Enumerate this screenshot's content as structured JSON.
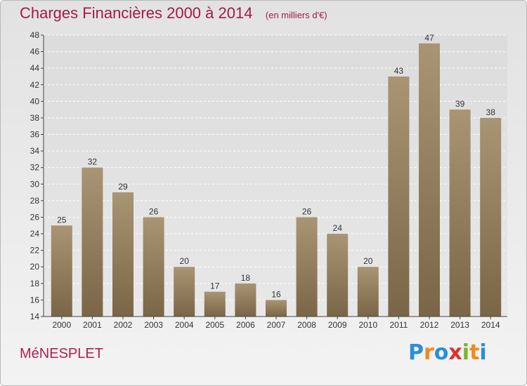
{
  "header": {
    "title": "Charges Financières 2000 à 2014",
    "unit": "(en milliers d'€)"
  },
  "footer": {
    "commune": "MéNESPLET",
    "brand": "Proxiti",
    "brand_letters": [
      {
        "ch": "P",
        "color": "#2a8fd6"
      },
      {
        "ch": "r",
        "color": "#f08a1c"
      },
      {
        "ch": "o",
        "color": "#2a8fd6"
      },
      {
        "ch": "x",
        "color": "#e0302a"
      },
      {
        "ch": "i",
        "color": "#7bb52a"
      },
      {
        "ch": "t",
        "color": "#f08a1c"
      },
      {
        "ch": "i",
        "color": "#2a8fd6"
      }
    ]
  },
  "chart_data": {
    "type": "bar",
    "title": "Charges Financières 2000 à 2014",
    "subtitle": "(en milliers d'€)",
    "categories": [
      "2000",
      "2001",
      "2002",
      "2003",
      "2004",
      "2005",
      "2006",
      "2007",
      "2008",
      "2009",
      "2010",
      "2011",
      "2012",
      "2013",
      "2014"
    ],
    "values": [
      25,
      32,
      29,
      26,
      20,
      17,
      18,
      16,
      26,
      24,
      20,
      43,
      47,
      39,
      38
    ],
    "ylim": [
      14,
      48
    ],
    "yticks": [
      14,
      16,
      18,
      20,
      22,
      24,
      26,
      28,
      30,
      32,
      34,
      36,
      38,
      40,
      42,
      44,
      46,
      48
    ],
    "grid": true,
    "bar_color_top": "#a99474",
    "bar_color_bottom": "#7a6646",
    "grid_color": "#ffffff",
    "axis_color": "#444444"
  }
}
